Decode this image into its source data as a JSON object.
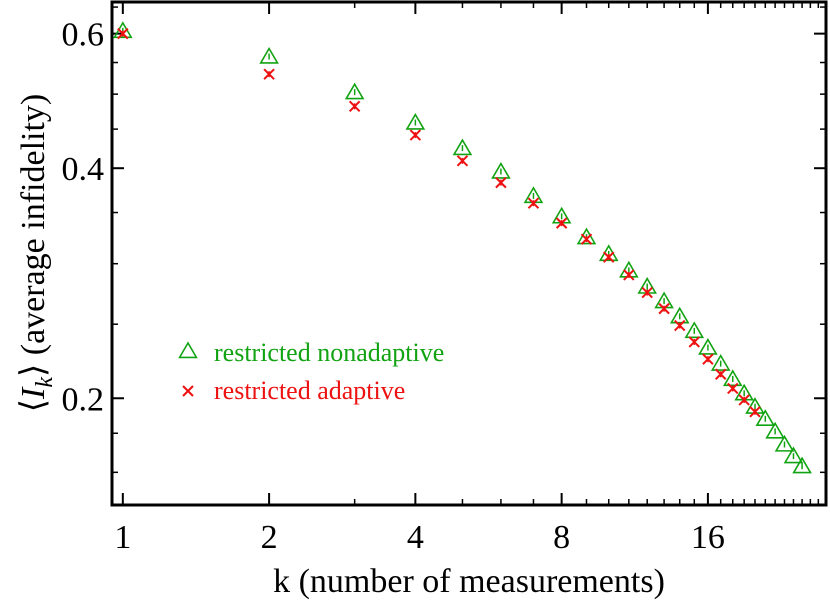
{
  "chart_data": {
    "type": "scatter",
    "xscale": "log2",
    "yscale": "log",
    "xlabel": "k (number of measurements)",
    "ylabel": "⟨I_k⟩ (average infidelity)",
    "ylabel_parts": {
      "open": "⟨",
      "symbol": "I",
      "sub": "k",
      "close": "⟩",
      "rest": " (average infidelity)"
    },
    "xlim": [
      0.95,
      28
    ],
    "ylim": [
      0.145,
      0.66
    ],
    "xticks": [
      {
        "value": 1,
        "label": "1"
      },
      {
        "value": 2,
        "label": "2"
      },
      {
        "value": 4,
        "label": "4"
      },
      {
        "value": 8,
        "label": "8"
      },
      {
        "value": 16,
        "label": "16"
      }
    ],
    "yticks": [
      {
        "value": 0.2,
        "label": "0.2"
      },
      {
        "value": 0.4,
        "label": "0.4"
      },
      {
        "value": 0.6,
        "label": "0.6"
      }
    ],
    "grid": false,
    "legend_position": "middle-left",
    "series": [
      {
        "name": "restricted nonadaptive",
        "marker": "triangle",
        "color": "#12a312",
        "x": [
          1,
          2,
          3,
          4,
          5,
          6,
          7,
          8,
          9,
          10,
          11,
          12,
          13,
          14,
          15,
          16,
          17,
          18,
          19,
          20,
          21,
          22,
          23,
          24,
          25
        ],
        "y": [
          0.605,
          0.56,
          0.503,
          0.459,
          0.425,
          0.396,
          0.368,
          0.346,
          0.325,
          0.309,
          0.294,
          0.28,
          0.268,
          0.256,
          0.245,
          0.233,
          0.222,
          0.212,
          0.203,
          0.195,
          0.188,
          0.181,
          0.174,
          0.168,
          0.163
        ]
      },
      {
        "name": "restricted adaptive",
        "marker": "cross",
        "color": "#ee1111",
        "x": [
          1,
          2,
          3,
          4,
          5,
          6,
          7,
          8,
          9,
          10,
          11,
          12,
          13,
          14,
          15,
          16,
          17,
          18,
          19,
          20
        ],
        "y": [
          0.6,
          0.531,
          0.482,
          0.442,
          0.409,
          0.383,
          0.36,
          0.339,
          0.323,
          0.306,
          0.29,
          0.275,
          0.262,
          0.249,
          0.237,
          0.225,
          0.215,
          0.206,
          0.199,
          0.192
        ]
      }
    ]
  }
}
